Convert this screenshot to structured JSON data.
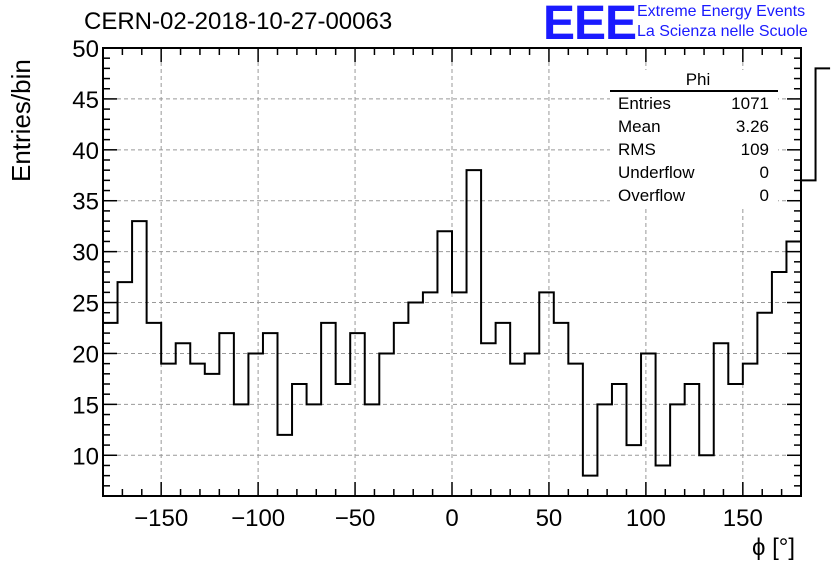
{
  "header": {
    "run_title": "CERN-02-2018-10-27-00063",
    "logo_text": "EEE",
    "logo_line1": "Extreme Energy Events",
    "logo_line2": "La Scienza nelle Scuole",
    "logo_color": "#1a1aff"
  },
  "stats_box": {
    "title": "Phi",
    "rows": [
      {
        "label": "Entries",
        "value": "1071"
      },
      {
        "label": "Mean",
        "value": "3.26"
      },
      {
        "label": "RMS",
        "value": "109"
      },
      {
        "label": "Underflow",
        "value": "0"
      },
      {
        "label": "Overflow",
        "value": "0"
      }
    ]
  },
  "chart_data": {
    "type": "histogram",
    "xlabel": "ϕ [°]",
    "ylabel": "Entries/bin",
    "xlim": [
      -180,
      180
    ],
    "ylim": [
      6,
      50
    ],
    "xticks": [
      -150,
      -100,
      -50,
      0,
      50,
      100,
      150
    ],
    "xtick_labels": [
      "−150",
      "−100",
      "−50",
      "0",
      "50",
      "100",
      "150"
    ],
    "yticks": [
      10,
      15,
      20,
      25,
      30,
      35,
      40,
      45,
      50
    ],
    "ytick_labels": [
      "10",
      "15",
      "20",
      "25",
      "30",
      "35",
      "40",
      "45",
      "50"
    ],
    "grid": true,
    "bin_width": 7.5,
    "bin_start": -180,
    "values": [
      23,
      27,
      33,
      23,
      19,
      21,
      19,
      18,
      22,
      15,
      20,
      22,
      12,
      17,
      15,
      23,
      17,
      22,
      15,
      20,
      23,
      25,
      26,
      32,
      26,
      38,
      21,
      23,
      19,
      20,
      26,
      23,
      19,
      8,
      15,
      17,
      11,
      20,
      9,
      15,
      17,
      10,
      21,
      17,
      19,
      24,
      28,
      31,
      37,
      48
    ],
    "line_color": "#000000",
    "grid_color": "#999999"
  }
}
